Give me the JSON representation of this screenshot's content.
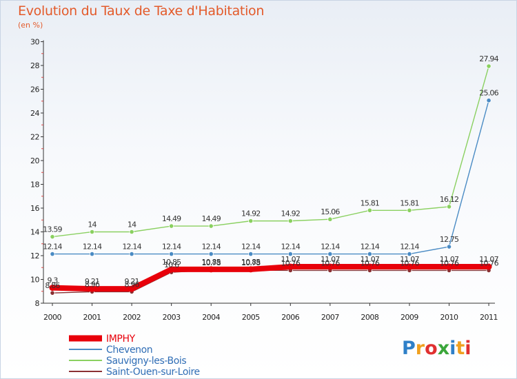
{
  "chart_data": {
    "type": "line",
    "title": "Evolution du Taux de Taxe d'Habitation",
    "subtitle": "(en %)",
    "xlabel": "",
    "ylabel": "",
    "categories": [
      "2000",
      "2001",
      "2002",
      "2003",
      "2004",
      "2005",
      "2006",
      "2007",
      "2008",
      "2009",
      "2010",
      "2011"
    ],
    "ylim": [
      8,
      30
    ],
    "yticks": [
      8,
      10,
      12,
      14,
      16,
      18,
      20,
      22,
      24,
      26,
      28,
      30
    ],
    "grid": false,
    "legend": "bottom-left",
    "series": [
      {
        "name": "Saint-Ouen-sur-Loire",
        "color": "#8a3033",
        "values": [
          8.86,
          8.96,
          8.96,
          10.6,
          10.78,
          10.78,
          10.76,
          10.76,
          10.76,
          10.76,
          10.76,
          10.76
        ],
        "labels": [
          "8.86",
          "8.96",
          "8.96",
          "10.6",
          "10.78",
          "10.78",
          "10.76",
          "10.76",
          "10.76",
          "10.76",
          "10.76",
          "10.76"
        ]
      },
      {
        "name": "Chevenon",
        "color": "#4a8bc4",
        "values": [
          12.14,
          12.14,
          12.14,
          12.14,
          12.14,
          12.14,
          12.14,
          12.14,
          12.14,
          12.14,
          12.75,
          25.06
        ],
        "labels": [
          "12.14",
          "12.14",
          "12.14",
          "12.14",
          "12.14",
          "12.14",
          "12.14",
          "12.14",
          "12.14",
          "12.14",
          "12.75",
          "25.06"
        ]
      },
      {
        "name": "Sauvigny-les-Bois",
        "color": "#8ad060",
        "values": [
          13.59,
          14,
          14,
          14.49,
          14.49,
          14.92,
          14.92,
          15.06,
          15.81,
          15.81,
          16.12,
          27.94
        ],
        "labels": [
          "13.59",
          "14",
          "14",
          "14.49",
          "14.49",
          "14.92",
          "14.92",
          "15.06",
          "15.81",
          "15.81",
          "16.12",
          "27.94"
        ]
      },
      {
        "name": "IMPHY",
        "color": "#e8000a",
        "values": [
          9.3,
          9.21,
          9.21,
          10.85,
          10.85,
          10.85,
          11.07,
          11.07,
          11.07,
          11.07,
          11.07,
          11.07
        ],
        "labels": [
          "9.3",
          "9.21",
          "9.21",
          "10.85",
          "10.85",
          "10.85",
          "11.07",
          "11.07",
          "11.07",
          "11.07",
          "11.07",
          "11.07"
        ]
      }
    ]
  },
  "legend": {
    "items": [
      {
        "label": "IMPHY",
        "color": "#e8000a",
        "text_color": "#e8000a"
      },
      {
        "label": "Chevenon",
        "color": "#4a8bc4",
        "text_color": "#2f6db5"
      },
      {
        "label": "Sauvigny-les-Bois",
        "color": "#8ad060",
        "text_color": "#2f6db5"
      },
      {
        "label": "Saint-Ouen-sur-Loire",
        "color": "#8a3033",
        "text_color": "#2f6db5"
      }
    ]
  },
  "logo": {
    "text": "Proxiti",
    "colors": [
      "#2e7fc8",
      "#f0a020",
      "#e03030",
      "#3aa63a",
      "#2e7fc8",
      "#f0a020",
      "#e03030"
    ]
  }
}
